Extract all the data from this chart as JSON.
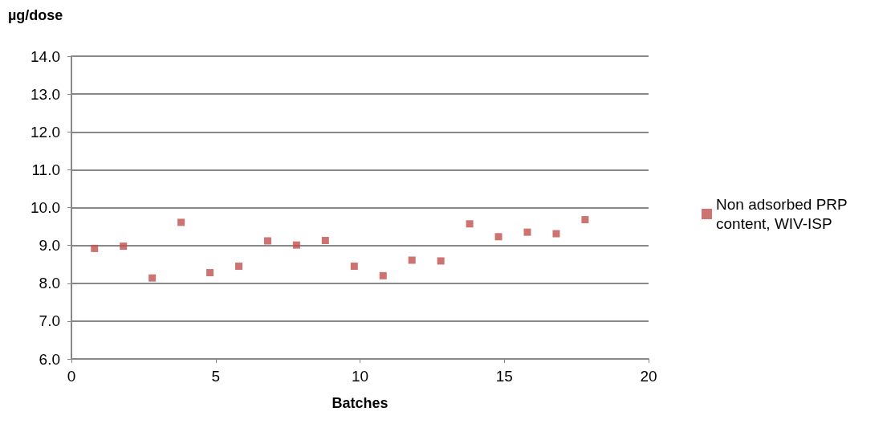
{
  "chart_data": {
    "type": "scatter",
    "xlabel": "Batches",
    "ylabel": "µg/dose",
    "x": [
      0.8,
      1.8,
      2.8,
      3.8,
      4.8,
      5.8,
      6.8,
      7.8,
      8.8,
      9.8,
      10.8,
      11.8,
      12.8,
      13.8,
      14.8,
      15.8,
      16.8,
      17.8
    ],
    "series": [
      {
        "name": "Non adsorbed PRP content, WIV-ISP",
        "color": "#c0504d",
        "values": [
          8.92,
          8.98,
          8.14,
          9.61,
          8.28,
          8.45,
          9.12,
          9.01,
          9.13,
          8.45,
          8.2,
          8.61,
          8.59,
          9.57,
          9.23,
          9.35,
          9.31,
          9.68
        ]
      }
    ],
    "xlim": [
      0,
      20
    ],
    "xticks": [
      0,
      5,
      10,
      15,
      20
    ],
    "ylim": [
      6,
      14
    ],
    "yticks": [
      {
        "value": 6,
        "label": "6.0"
      },
      {
        "value": 7,
        "label": "7.0"
      },
      {
        "value": 8,
        "label": "8.0"
      },
      {
        "value": 9,
        "label": "9.0"
      },
      {
        "value": 10,
        "label": "10.0"
      },
      {
        "value": 11,
        "label": "11.0"
      },
      {
        "value": 12,
        "label": "12.0"
      },
      {
        "value": 13,
        "label": "13.0"
      },
      {
        "value": 14,
        "label": "14.0"
      }
    ],
    "grid": "y",
    "legend": "right",
    "marker": "square"
  }
}
